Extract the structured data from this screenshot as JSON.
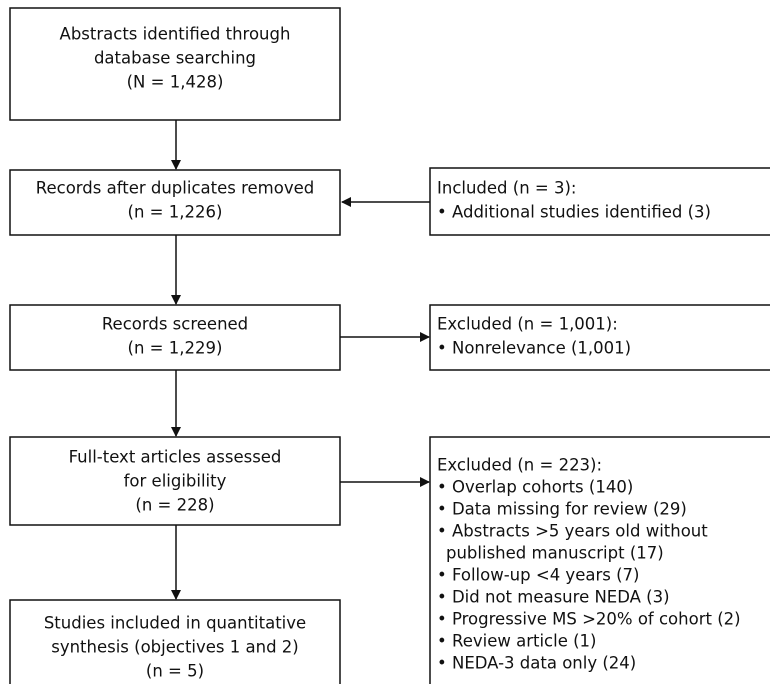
{
  "nodes": [
    {
      "lines": [
        "Abstracts identified through",
        "database searching",
        "(N = 1,428)"
      ]
    },
    {
      "lines": [
        "Records after duplicates removed",
        "(n = 1,226)"
      ]
    },
    {
      "lines": [
        "Included (n = 3):",
        "• Additional studies identified (3)"
      ]
    },
    {
      "lines": [
        "Records screened",
        "(n = 1,229)"
      ]
    },
    {
      "lines": [
        "Excluded (n = 1,001):",
        "• Nonrelevance (1,001)"
      ]
    },
    {
      "lines": [
        "Full-text articles assessed",
        "for eligibility",
        "(n = 228)"
      ]
    },
    {
      "lines": [
        "Excluded (n = 223):",
        "• Overlap cohorts (140)",
        "• Data missing for review (29)",
        "• Abstracts >5 years old without",
        "published manuscript (17)",
        "• Follow-up <4 years (7)",
        "• Did not measure NEDA (3)",
        "• Progressive MS >20% of cohort (2)",
        "• Review article (1)",
        "• NEDA-3 data only (24)"
      ]
    },
    {
      "lines": [
        "Studies included in quantitative",
        "synthesis (objectives 1 and 2)",
        "(n = 5)"
      ]
    }
  ]
}
